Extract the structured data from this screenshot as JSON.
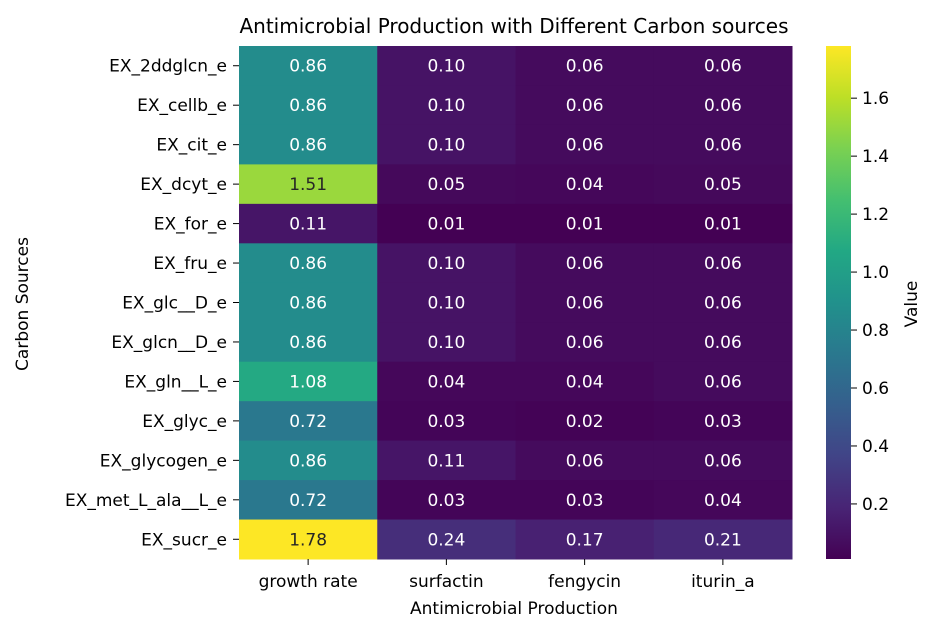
{
  "chart_data": {
    "type": "heatmap",
    "title": "Antimicrobial Production with Different Carbon sources",
    "xlabel": "Antimicrobial Production",
    "ylabel": "Carbon Sources",
    "x_categories": [
      "growth rate",
      "surfactin",
      "fengycin",
      "iturin_a"
    ],
    "y_categories": [
      "EX_2ddglcn_e",
      "EX_cellb_e",
      "EX_cit_e",
      "EX_dcyt_e",
      "EX_for_e",
      "EX_fru_e",
      "EX_glc__D_e",
      "EX_glcn__D_e",
      "EX_gln__L_e",
      "EX_glyc_e",
      "EX_glycogen_e",
      "EX_met_L_ala__L_e",
      "EX_sucr_e"
    ],
    "values": [
      [
        0.86,
        0.1,
        0.06,
        0.06
      ],
      [
        0.86,
        0.1,
        0.06,
        0.06
      ],
      [
        0.86,
        0.1,
        0.06,
        0.06
      ],
      [
        1.51,
        0.05,
        0.04,
        0.05
      ],
      [
        0.11,
        0.01,
        0.01,
        0.01
      ],
      [
        0.86,
        0.1,
        0.06,
        0.06
      ],
      [
        0.86,
        0.1,
        0.06,
        0.06
      ],
      [
        0.86,
        0.1,
        0.06,
        0.06
      ],
      [
        1.08,
        0.04,
        0.04,
        0.06
      ],
      [
        0.72,
        0.03,
        0.02,
        0.03
      ],
      [
        0.86,
        0.11,
        0.06,
        0.06
      ],
      [
        0.72,
        0.03,
        0.03,
        0.04
      ],
      [
        1.78,
        0.24,
        0.17,
        0.21
      ]
    ],
    "colormap": "viridis",
    "vmin": 0.01,
    "vmax": 1.78,
    "colorbar_label": "Value",
    "colorbar_ticks": [
      0.2,
      0.4,
      0.6,
      0.8,
      1.0,
      1.2,
      1.4,
      1.6
    ],
    "colorbar_tick_labels": [
      "0.2",
      "0.4",
      "0.6",
      "0.8",
      "1.0",
      "1.2",
      "1.4",
      "1.6"
    ],
    "value_format": "0.00"
  }
}
